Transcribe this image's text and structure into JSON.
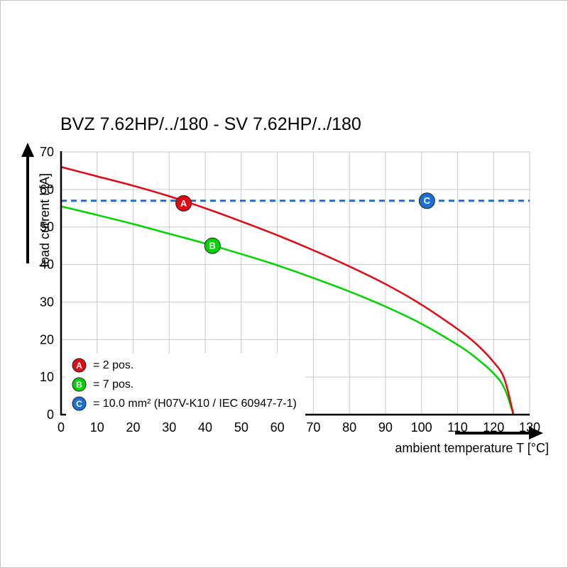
{
  "chart_data": {
    "type": "line",
    "title": "BVZ 7.62HP/../180 - SV 7.62HP/../180",
    "xlabel": "ambient temperature T [°C]",
    "ylabel": "load current I [A]",
    "xlim": [
      0,
      130
    ],
    "ylim": [
      0,
      70
    ],
    "x_ticks": [
      0,
      10,
      20,
      30,
      40,
      50,
      60,
      70,
      80,
      90,
      100,
      110,
      120,
      130
    ],
    "y_ticks": [
      0,
      10,
      20,
      30,
      40,
      50,
      60,
      70
    ],
    "grid": true,
    "legend_position": "bottom-left-inside",
    "colors": {
      "grid": "#c9c9c9",
      "axis": "#000000",
      "red": "#e30613",
      "green": "#00d400",
      "blue": "#1a6fd9"
    },
    "series": [
      {
        "name": "C",
        "label": "10.0 mm² (H07V-K10 / IEC 60947-7-1)",
        "color": "#1a6fd9",
        "width": 3,
        "dash": "8,6",
        "smooth": false,
        "points": [
          [
            0,
            57
          ],
          [
            130,
            57
          ]
        ]
      },
      {
        "name": "B",
        "label": "7 pos.",
        "color": "#00d400",
        "width": 2.5,
        "smooth": true,
        "points": [
          [
            0,
            55.5
          ],
          [
            10,
            53.2
          ],
          [
            20,
            50.8
          ],
          [
            30,
            48.2
          ],
          [
            40,
            45.6
          ],
          [
            50,
            42.8
          ],
          [
            60,
            39.8
          ],
          [
            70,
            36.4
          ],
          [
            80,
            32.8
          ],
          [
            90,
            28.8
          ],
          [
            100,
            24.2
          ],
          [
            110,
            18.6
          ],
          [
            115,
            15.2
          ],
          [
            120,
            11
          ],
          [
            123,
            7
          ],
          [
            125.5,
            0
          ]
        ]
      },
      {
        "name": "A",
        "label": "2 pos.",
        "color": "#e30613",
        "width": 2.5,
        "smooth": true,
        "points": [
          [
            0,
            66
          ],
          [
            10,
            63.5
          ],
          [
            20,
            61
          ],
          [
            30,
            58.2
          ],
          [
            40,
            55
          ],
          [
            50,
            51.5
          ],
          [
            60,
            47.8
          ],
          [
            70,
            43.8
          ],
          [
            80,
            39.5
          ],
          [
            90,
            34.8
          ],
          [
            100,
            29.3
          ],
          [
            110,
            22.8
          ],
          [
            115,
            19
          ],
          [
            120,
            14
          ],
          [
            123,
            9.5
          ],
          [
            125.5,
            0
          ]
        ]
      }
    ],
    "markers": [
      {
        "letter": "A",
        "x": 34,
        "y": 56.3,
        "color": "#e30613"
      },
      {
        "letter": "B",
        "x": 42,
        "y": 45,
        "color": "#00d400"
      },
      {
        "letter": "C",
        "x": 101.5,
        "y": 57,
        "color": "#1a6fd9"
      }
    ],
    "legend": [
      {
        "letter": "A",
        "color": "#e30613",
        "text": "= 2 pos."
      },
      {
        "letter": "B",
        "color": "#00d400",
        "text": "= 7 pos."
      },
      {
        "letter": "C",
        "color": "#1a6fd9",
        "text": "= 10.0 mm² (H07V-K10 / IEC 60947-7-1)"
      }
    ]
  }
}
